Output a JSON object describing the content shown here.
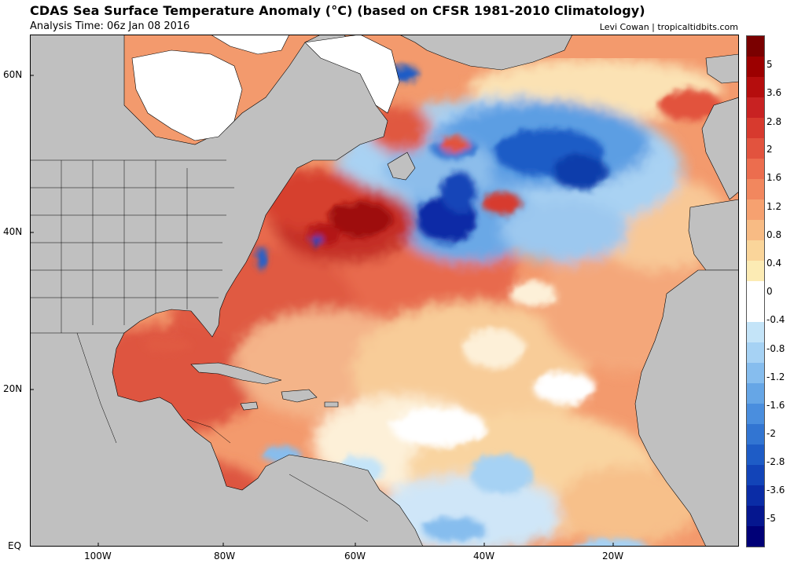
{
  "header": {
    "title": "CDAS Sea Surface Temperature Anomaly (°C) (based on CFSR 1981-2010 Climatology)",
    "subtitle": "Analysis Time: 06z Jan 08 2016",
    "credit": "Levi Cowan | tropicaltidbits.com"
  },
  "map": {
    "lat_labels": [
      "60N",
      "40N",
      "20N",
      "EQ"
    ],
    "lon_labels": [
      "100W",
      "80W",
      "60W",
      "40W",
      "20W"
    ],
    "land_color": "#c0c0c0",
    "ice_color": "#ffffff",
    "border_color": "#000000"
  },
  "colorbar": {
    "labels": [
      "5",
      "3.6",
      "2.8",
      "2",
      "1.6",
      "1.2",
      "0.8",
      "0.4",
      "0",
      "-0.4",
      "-0.8",
      "-1.2",
      "-1.6",
      "-2",
      "-2.8",
      "-3.6",
      "-5"
    ],
    "colors": [
      "#7a0000",
      "#9c0000",
      "#b50d0d",
      "#c82222",
      "#d73a2e",
      "#e2533e",
      "#ec6d4e",
      "#f2875e",
      "#f6a170",
      "#f8bb84",
      "#fad59a",
      "#fcebb4",
      "#ffffff",
      "#ffffff",
      "#c4e4f8",
      "#a6d2f4",
      "#86bdee",
      "#66a6e6",
      "#4a8ede",
      "#3275d2",
      "#1e5cc6",
      "#1244b8",
      "#0a2ca6",
      "#05168f",
      "#000077"
    ]
  }
}
